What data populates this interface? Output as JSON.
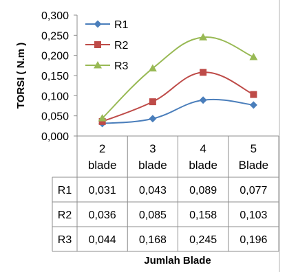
{
  "chart_data": {
    "type": "line",
    "title": "",
    "xlabel": "Jumlah Blade",
    "ylabel": "TORSI ( N.m )",
    "ylim": [
      0,
      0.3
    ],
    "yticks": [
      "0,000",
      "0,050",
      "0,100",
      "0,150",
      "0,200",
      "0,250",
      "0,300"
    ],
    "categories": [
      [
        "2",
        "blade"
      ],
      [
        "3",
        "blade"
      ],
      [
        "4",
        "blade"
      ],
      [
        "5",
        "Blade"
      ]
    ],
    "series": [
      {
        "name": "R1",
        "values": [
          0.031,
          0.043,
          0.089,
          0.077
        ],
        "labels": [
          "0,031",
          "0,043",
          "0,089",
          "0,077"
        ],
        "color": "#4a7ebb",
        "marker": "diamond"
      },
      {
        "name": "R2",
        "values": [
          0.036,
          0.085,
          0.158,
          0.103
        ],
        "labels": [
          "0,036",
          "0,085",
          "0,158",
          "0,103"
        ],
        "color": "#be4b48",
        "marker": "square"
      },
      {
        "name": "R3",
        "values": [
          0.044,
          0.168,
          0.245,
          0.196
        ],
        "labels": [
          "0,044",
          "0,168",
          "0,245",
          "0,196"
        ],
        "color": "#98b954",
        "marker": "triangle"
      }
    ],
    "line_style": "smooth",
    "grid": false,
    "legend": "top-left",
    "data_table": true
  }
}
